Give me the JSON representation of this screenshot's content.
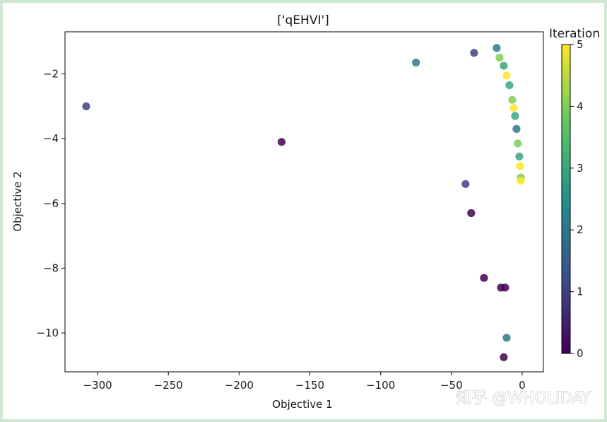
{
  "chart_data": {
    "type": "scatter",
    "title": "['qEHVI']",
    "xlabel": "Objective 1",
    "ylabel": "Objective 2",
    "xlim": [
      -323,
      15
    ],
    "ylim": [
      -11.2,
      -0.7
    ],
    "xticks": [
      -300,
      -250,
      -200,
      -150,
      -100,
      -50,
      0
    ],
    "yticks": [
      -2,
      -4,
      -6,
      -8,
      -10
    ],
    "colorbar": {
      "label": "Iteration",
      "range": [
        0,
        5
      ],
      "ticks": [
        0,
        1,
        2,
        3,
        4,
        5
      ],
      "colormap": [
        "#440154",
        "#3b528b",
        "#21918c",
        "#5ec962",
        "#fde725"
      ]
    },
    "points": [
      {
        "x": -308,
        "y": -3.0,
        "iter": 1
      },
      {
        "x": -170,
        "y": -4.1,
        "iter": 0
      },
      {
        "x": -75,
        "y": -1.65,
        "iter": 2
      },
      {
        "x": -34,
        "y": -1.35,
        "iter": 1
      },
      {
        "x": -40,
        "y": -5.4,
        "iter": 1
      },
      {
        "x": -36,
        "y": -6.3,
        "iter": 0
      },
      {
        "x": -27,
        "y": -8.3,
        "iter": 0
      },
      {
        "x": -15,
        "y": -8.6,
        "iter": 0
      },
      {
        "x": -12,
        "y": -8.6,
        "iter": 0
      },
      {
        "x": -11,
        "y": -10.15,
        "iter": 2
      },
      {
        "x": -13,
        "y": -10.75,
        "iter": 0
      },
      {
        "x": -18,
        "y": -1.2,
        "iter": 2
      },
      {
        "x": -16,
        "y": -1.5,
        "iter": 4
      },
      {
        "x": -13,
        "y": -1.75,
        "iter": 3
      },
      {
        "x": -11,
        "y": -2.05,
        "iter": 5
      },
      {
        "x": -9,
        "y": -2.35,
        "iter": 3
      },
      {
        "x": -7,
        "y": -2.8,
        "iter": 4
      },
      {
        "x": -6,
        "y": -3.05,
        "iter": 5
      },
      {
        "x": -5,
        "y": -3.3,
        "iter": 3
      },
      {
        "x": -4,
        "y": -3.7,
        "iter": 2
      },
      {
        "x": -3,
        "y": -4.15,
        "iter": 4
      },
      {
        "x": -2,
        "y": -4.55,
        "iter": 3
      },
      {
        "x": -1.5,
        "y": -4.85,
        "iter": 5
      },
      {
        "x": -1,
        "y": -5.2,
        "iter": 4
      },
      {
        "x": -1,
        "y": -5.3,
        "iter": 5
      }
    ]
  },
  "watermark": "知乎 @WHOLIDAY"
}
